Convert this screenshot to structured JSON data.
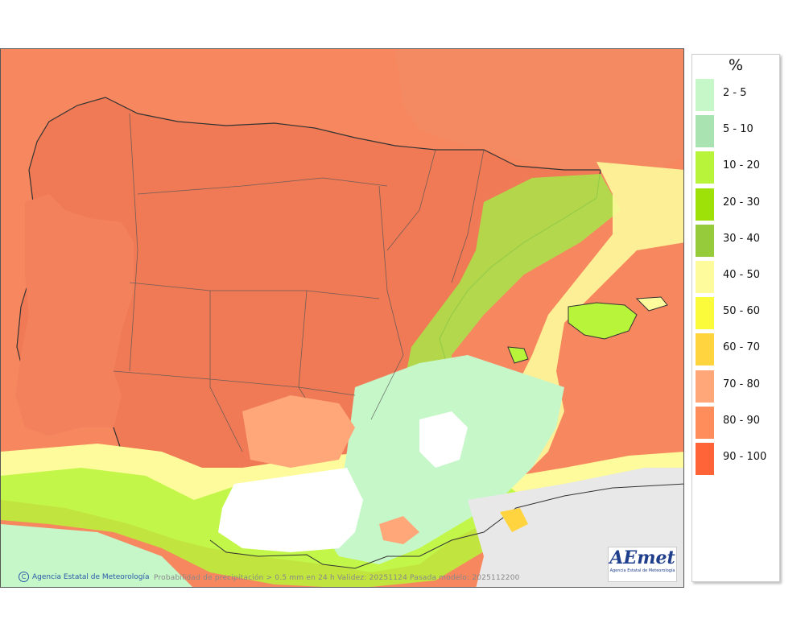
{
  "legend": {
    "unit": "%",
    "items": [
      {
        "label": "2 - 5",
        "color": "#c6f7c9"
      },
      {
        "label": "5 - 10",
        "color": "#a9e3b2"
      },
      {
        "label": "10 - 20",
        "color": "#b7f43a"
      },
      {
        "label": "20 - 30",
        "color": "#9de108"
      },
      {
        "label": "30 - 40",
        "color": "#96cc3c"
      },
      {
        "label": "40 - 50",
        "color": "#fdfb9b"
      },
      {
        "label": "50 - 60",
        "color": "#fbfa3b"
      },
      {
        "label": "60 - 70",
        "color": "#ffd43e"
      },
      {
        "label": "70 - 80",
        "color": "#ffa779"
      },
      {
        "label": "80 - 90",
        "color": "#ff8c5b"
      },
      {
        "label": "90 - 100",
        "color": "#ff6438"
      }
    ]
  },
  "map": {
    "credit": "Agencia Estatal de Meteorología",
    "credit_symbol": "C",
    "caption": "Probabilidad de precipitación > 0.5 mm en 24 h Validez: 20251124 Pasada modelo: 2025112200",
    "logo_text": "AEmet",
    "logo_subtext": "Agencia Estatal de Meteorología"
  }
}
